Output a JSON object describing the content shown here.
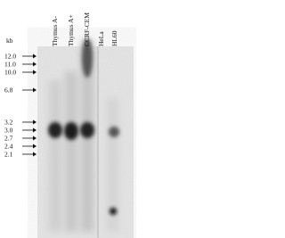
{
  "unit_label": "kb",
  "lanes": [
    "Thymus A-",
    "Thymus A+",
    "CCRF-CEM",
    "HeLa",
    "HL60"
  ],
  "markers": [
    "12.0",
    "11.0",
    "10.0",
    "6.8",
    "3.2",
    "3.0",
    "2.7",
    "2.4",
    "2.1"
  ]
}
